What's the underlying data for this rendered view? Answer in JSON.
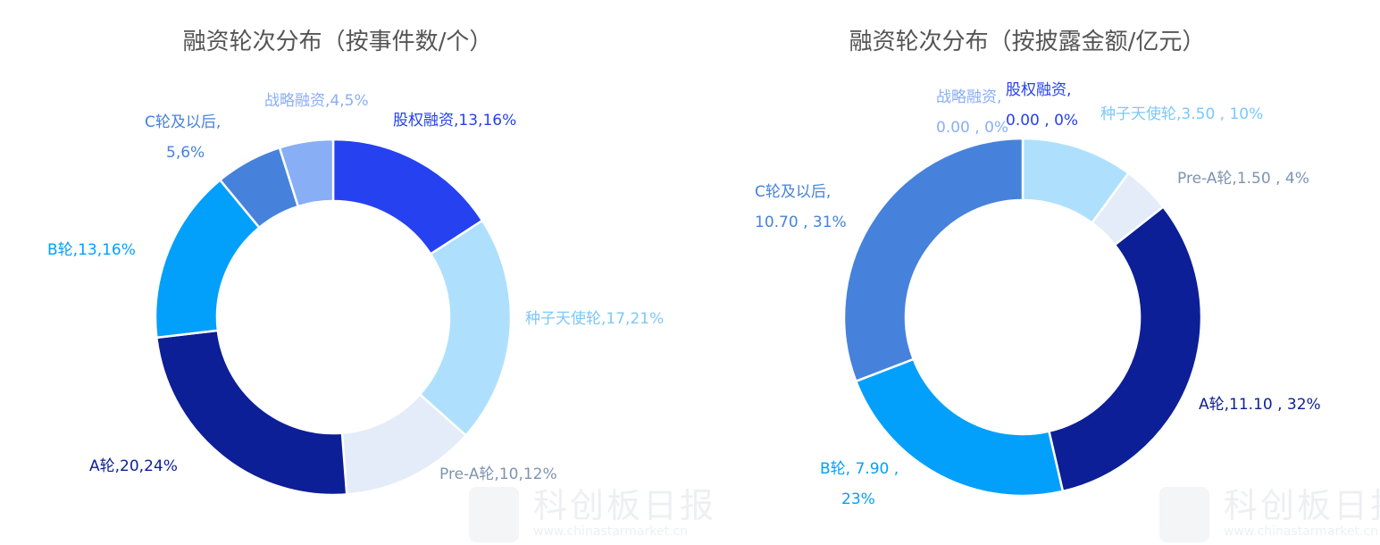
{
  "watermark": {
    "name": "科创板日报",
    "url": "www.chinastarmarket.cn"
  },
  "chart_data": [
    {
      "type": "pie",
      "donut": true,
      "title": "融资轮次分布（按事件数/个）",
      "categories": [
        "股权融资",
        "种子天使轮",
        "Pre-A轮",
        "A轮",
        "B轮",
        "C轮及以后",
        "战略融资"
      ],
      "values": [
        13,
        17,
        10,
        20,
        13,
        5,
        4
      ],
      "percents": [
        16,
        21,
        12,
        24,
        16,
        6,
        5
      ],
      "colors": [
        "#2541f0",
        "#aee0fd",
        "#e3ecf8",
        "#0c1f96",
        "#03a0fb",
        "#4682dc",
        "#88aef6"
      ],
      "label_colors": [
        "#2541f0",
        "#7cc8f8",
        "#7f93b0",
        "#0c1f96",
        "#03a0fb",
        "#4682dc",
        "#88aef6"
      ],
      "labels": [
        [
          "股权融资,13,16%"
        ],
        [
          "种子天使轮,17,21%"
        ],
        [
          "Pre-A轮,10,12%"
        ],
        [
          "A轮,20,24%"
        ],
        [
          "B轮,13,16%"
        ],
        [
          "C轮及以后,",
          "5,6%"
        ],
        [
          "战略融资,4,5%"
        ]
      ]
    },
    {
      "type": "pie",
      "donut": true,
      "title": "融资轮次分布（按披露金额/亿元）",
      "categories": [
        "股权融资",
        "种子天使轮",
        "Pre-A轮",
        "A轮",
        "B轮",
        "C轮及以后",
        "战略融资"
      ],
      "values": [
        0.0,
        3.5,
        1.5,
        11.1,
        7.9,
        10.7,
        0.0
      ],
      "percents": [
        0,
        10,
        4,
        32,
        23,
        31,
        0
      ],
      "colors": [
        "#2541f0",
        "#aee0fd",
        "#e3ecf8",
        "#0c1f96",
        "#03a0fb",
        "#4682dc",
        "#88aef6"
      ],
      "label_colors": [
        "#2541f0",
        "#7cc8f8",
        "#7f93b0",
        "#0c1f96",
        "#03a0fb",
        "#4682dc",
        "#88aef6"
      ],
      "labels": [
        [
          "股权融资,",
          "0.00 , 0%"
        ],
        [
          "种子天使轮,3.50 , 10%"
        ],
        [
          "Pre-A轮,1.50 , 4%"
        ],
        [
          "A轮,11.10 , 32%"
        ],
        [
          "B轮, 7.90 ,",
          "23%"
        ],
        [
          "C轮及以后,",
          "10.70 , 31%"
        ],
        [
          "战略融资,",
          "0.00 , 0%"
        ]
      ]
    }
  ]
}
